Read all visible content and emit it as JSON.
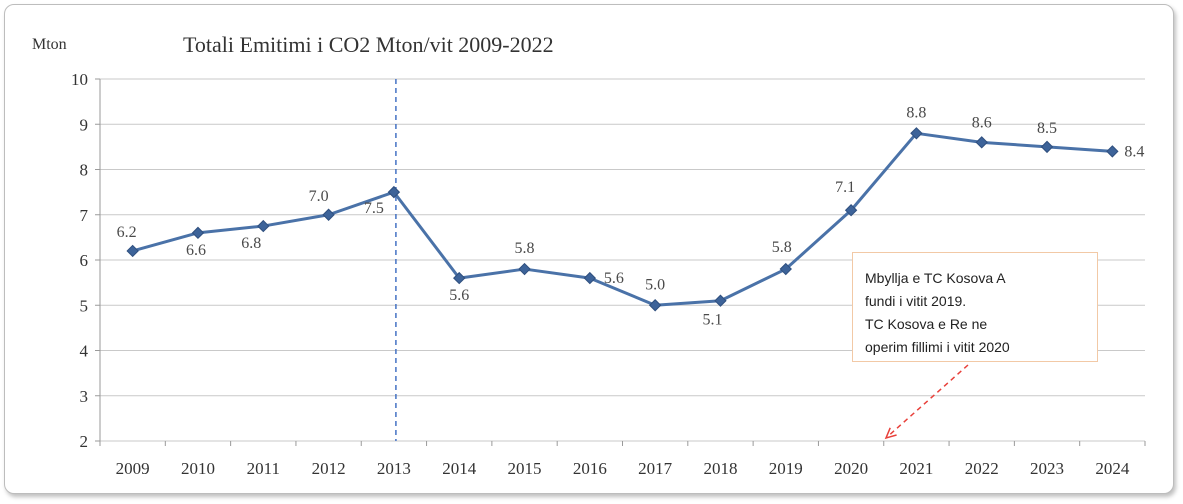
{
  "chart_data": {
    "type": "line",
    "title": "Totali Emitimi i  CO2 Mton/vit 2009-2022",
    "ylabel": "Mton",
    "xlabel": "",
    "ylim": [
      2,
      10
    ],
    "yticks": [
      2,
      3,
      4,
      5,
      6,
      7,
      8,
      9,
      10
    ],
    "grid": true,
    "categories": [
      "2009",
      "2010",
      "2011",
      "2012",
      "2013",
      "2014",
      "2015",
      "2016",
      "2017",
      "2018",
      "2019",
      "2020",
      "2021",
      "2022",
      "2023",
      "2024"
    ],
    "series": [
      {
        "values": [
          6.2,
          6.6,
          6.75,
          7.0,
          7.5,
          5.6,
          5.8,
          5.6,
          5.0,
          5.1,
          5.8,
          7.1,
          8.8,
          8.6,
          8.5,
          8.4
        ],
        "labels": [
          "6.2",
          "6.6",
          "6.8",
          "7.0",
          "7.5",
          "5.6",
          "5.8",
          "5.6",
          "5.0",
          "5.1",
          "5.8",
          "7.1",
          "8.8",
          "8.6",
          "8.5",
          "8.4"
        ],
        "color": "#4a72a8"
      }
    ],
    "vertical_marker": {
      "category": "2013",
      "style": "dashed",
      "color": "#4472c4"
    },
    "annotation": {
      "lines": [
        "Mbyllja e TC Kosova A",
        "fundi i vitit 2019.",
        "TC Kosova e Re ne",
        "operim fillimi i vitit  2020"
      ],
      "border_color": "#f2c9a6",
      "arrow_color": "#e8403a"
    }
  }
}
